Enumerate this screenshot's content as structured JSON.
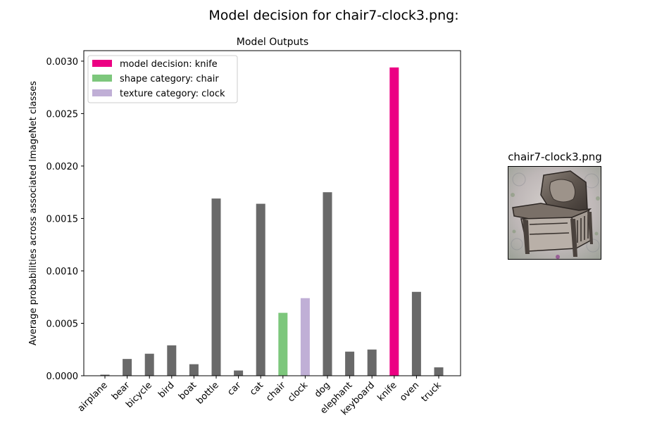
{
  "figure": {
    "suptitle": "Model decision for chair7-clock3.png:"
  },
  "chart_data": {
    "type": "bar",
    "title": "Model Outputs",
    "xlabel": "",
    "ylabel": "Average probabilities across associated ImageNet classes",
    "categories": [
      "airplane",
      "bear",
      "bicycle",
      "bird",
      "boat",
      "bottle",
      "car",
      "cat",
      "chair",
      "clock",
      "dog",
      "elephant",
      "keyboard",
      "knife",
      "oven",
      "truck"
    ],
    "values": [
      1e-05,
      0.00016,
      0.00021,
      0.00029,
      0.00011,
      0.00169,
      5e-05,
      0.00164,
      0.0006,
      0.00074,
      0.00175,
      0.00023,
      0.00025,
      0.00294,
      0.0008,
      8e-05
    ],
    "ylim": [
      0,
      0.0031
    ],
    "yticks": [
      0.0,
      0.0005,
      0.001,
      0.0015,
      0.002,
      0.0025,
      0.003
    ],
    "ytick_labels": [
      "0.0000",
      "0.0005",
      "0.0010",
      "0.0015",
      "0.0020",
      "0.0025",
      "0.0030"
    ],
    "colors": {
      "default": "#696969",
      "decision": "#ec0083",
      "shape": "#7dc77c",
      "texture": "#c0afd6"
    },
    "highlight": {
      "knife": "decision",
      "chair": "shape",
      "clock": "texture"
    },
    "legend": {
      "placement": "top-left",
      "entries": [
        {
          "label": "model decision: knife",
          "color": "#ec0083"
        },
        {
          "label": "shape category: chair",
          "color": "#7dc77c"
        },
        {
          "label": "texture category: clock",
          "color": "#c0afd6"
        }
      ]
    },
    "grid": false
  },
  "thumbnail": {
    "title": "chair7-clock3.png"
  }
}
